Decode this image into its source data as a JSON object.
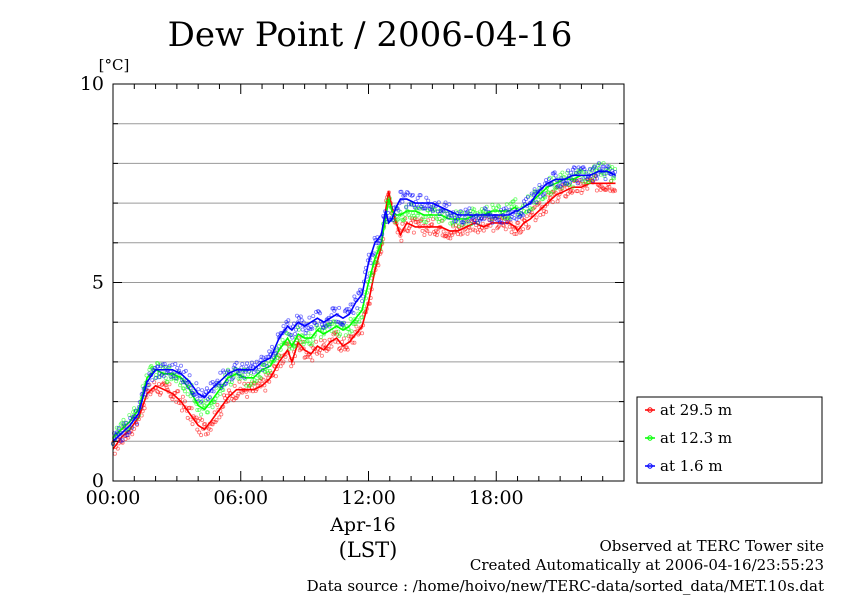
{
  "chart_data": {
    "type": "line",
    "title": "Dew Point / 2006-04-16",
    "ylabel": "[°C]",
    "xlabel_date": "Apr-16",
    "xlabel_tz": "(LST)",
    "ylim": [
      0,
      10
    ],
    "xlim": [
      0,
      24
    ],
    "y_ticks": [
      0,
      5,
      10
    ],
    "y_tick_labels": [
      "0",
      "5",
      "10"
    ],
    "y_minor_ticks": [
      1,
      2,
      3,
      4,
      6,
      7,
      8,
      9
    ],
    "x_ticks": [
      0,
      6,
      12,
      18
    ],
    "x_tick_labels": [
      "00:00",
      "06:00",
      "12:00",
      "18:00"
    ],
    "grid": "horizontal",
    "legend_position": "bottom-right, outside plot",
    "series": [
      {
        "name": "at 29.5 m",
        "color": "#ff0000",
        "points": [
          [
            0,
            0.8
          ],
          [
            0.4,
            1.1
          ],
          [
            0.8,
            1.3
          ],
          [
            1.2,
            1.6
          ],
          [
            1.6,
            2.2
          ],
          [
            2.0,
            2.4
          ],
          [
            2.4,
            2.3
          ],
          [
            2.8,
            2.2
          ],
          [
            3.2,
            2.0
          ],
          [
            3.6,
            1.7
          ],
          [
            4.0,
            1.4
          ],
          [
            4.3,
            1.3
          ],
          [
            4.6,
            1.5
          ],
          [
            5.0,
            1.8
          ],
          [
            5.4,
            2.1
          ],
          [
            5.8,
            2.3
          ],
          [
            6.2,
            2.3
          ],
          [
            6.6,
            2.3
          ],
          [
            7.0,
            2.4
          ],
          [
            7.4,
            2.6
          ],
          [
            7.8,
            3.0
          ],
          [
            8.2,
            3.3
          ],
          [
            8.4,
            3.0
          ],
          [
            8.7,
            3.5
          ],
          [
            9.0,
            3.3
          ],
          [
            9.3,
            3.2
          ],
          [
            9.6,
            3.4
          ],
          [
            9.9,
            3.3
          ],
          [
            10.2,
            3.5
          ],
          [
            10.5,
            3.6
          ],
          [
            10.8,
            3.4
          ],
          [
            11.1,
            3.5
          ],
          [
            11.4,
            3.7
          ],
          [
            11.7,
            3.9
          ],
          [
            12.0,
            4.5
          ],
          [
            12.3,
            5.3
          ],
          [
            12.6,
            5.9
          ],
          [
            12.8,
            6.8
          ],
          [
            12.95,
            7.3
          ],
          [
            13.1,
            6.9
          ],
          [
            13.3,
            6.5
          ],
          [
            13.5,
            6.2
          ],
          [
            13.8,
            6.5
          ],
          [
            14.2,
            6.4
          ],
          [
            14.6,
            6.4
          ],
          [
            15.0,
            6.4
          ],
          [
            15.4,
            6.4
          ],
          [
            15.8,
            6.3
          ],
          [
            16.2,
            6.3
          ],
          [
            16.6,
            6.4
          ],
          [
            17.0,
            6.5
          ],
          [
            17.4,
            6.4
          ],
          [
            17.8,
            6.5
          ],
          [
            18.2,
            6.5
          ],
          [
            18.6,
            6.5
          ],
          [
            18.9,
            6.4
          ],
          [
            19.0,
            6.3
          ],
          [
            19.3,
            6.5
          ],
          [
            19.6,
            6.6
          ],
          [
            20.0,
            6.8
          ],
          [
            20.4,
            7.0
          ],
          [
            20.8,
            7.2
          ],
          [
            21.2,
            7.3
          ],
          [
            21.6,
            7.4
          ],
          [
            22.0,
            7.4
          ],
          [
            22.4,
            7.5
          ],
          [
            22.8,
            7.5
          ],
          [
            23.2,
            7.5
          ],
          [
            23.6,
            7.5
          ]
        ]
      },
      {
        "name": "at 12.3 m",
        "color": "#00ff00",
        "points": [
          [
            0,
            1.1
          ],
          [
            0.4,
            1.3
          ],
          [
            0.8,
            1.5
          ],
          [
            1.2,
            1.8
          ],
          [
            1.6,
            2.6
          ],
          [
            2.0,
            2.8
          ],
          [
            2.4,
            2.7
          ],
          [
            2.8,
            2.7
          ],
          [
            3.2,
            2.6
          ],
          [
            3.6,
            2.3
          ],
          [
            4.0,
            1.9
          ],
          [
            4.3,
            1.8
          ],
          [
            4.6,
            2.0
          ],
          [
            5.0,
            2.3
          ],
          [
            5.4,
            2.6
          ],
          [
            5.8,
            2.7
          ],
          [
            6.2,
            2.6
          ],
          [
            6.6,
            2.6
          ],
          [
            7.0,
            2.8
          ],
          [
            7.4,
            2.9
          ],
          [
            7.8,
            3.3
          ],
          [
            8.2,
            3.6
          ],
          [
            8.4,
            3.4
          ],
          [
            8.7,
            3.7
          ],
          [
            9.0,
            3.6
          ],
          [
            9.3,
            3.6
          ],
          [
            9.6,
            3.8
          ],
          [
            9.9,
            3.7
          ],
          [
            10.2,
            3.8
          ],
          [
            10.5,
            3.9
          ],
          [
            10.8,
            3.8
          ],
          [
            11.1,
            3.9
          ],
          [
            11.4,
            4.1
          ],
          [
            11.7,
            4.3
          ],
          [
            12.0,
            5.0
          ],
          [
            12.3,
            5.6
          ],
          [
            12.6,
            6.0
          ],
          [
            12.8,
            6.6
          ],
          [
            12.95,
            7.1
          ],
          [
            13.1,
            6.8
          ],
          [
            13.3,
            6.7
          ],
          [
            13.5,
            6.7
          ],
          [
            13.8,
            6.8
          ],
          [
            14.2,
            6.8
          ],
          [
            14.6,
            6.7
          ],
          [
            15.0,
            6.7
          ],
          [
            15.4,
            6.7
          ],
          [
            15.8,
            6.6
          ],
          [
            16.2,
            6.6
          ],
          [
            16.6,
            6.6
          ],
          [
            17.0,
            6.7
          ],
          [
            17.4,
            6.7
          ],
          [
            17.8,
            6.8
          ],
          [
            18.2,
            6.8
          ],
          [
            18.6,
            6.8
          ],
          [
            18.9,
            6.9
          ],
          [
            19.0,
            6.8
          ],
          [
            19.3,
            6.9
          ],
          [
            19.6,
            7.0
          ],
          [
            20.0,
            7.2
          ],
          [
            20.4,
            7.4
          ],
          [
            20.8,
            7.5
          ],
          [
            21.2,
            7.6
          ],
          [
            21.6,
            7.6
          ],
          [
            22.0,
            7.7
          ],
          [
            22.4,
            7.7
          ],
          [
            22.8,
            7.8
          ],
          [
            23.2,
            7.8
          ],
          [
            23.6,
            7.7
          ]
        ]
      },
      {
        "name": "at 1.6 m",
        "color": "#0000ff",
        "points": [
          [
            0,
            1.0
          ],
          [
            0.4,
            1.2
          ],
          [
            0.8,
            1.4
          ],
          [
            1.2,
            1.7
          ],
          [
            1.6,
            2.5
          ],
          [
            2.0,
            2.8
          ],
          [
            2.4,
            2.8
          ],
          [
            2.8,
            2.8
          ],
          [
            3.2,
            2.7
          ],
          [
            3.6,
            2.5
          ],
          [
            4.0,
            2.2
          ],
          [
            4.3,
            2.1
          ],
          [
            4.6,
            2.3
          ],
          [
            5.0,
            2.5
          ],
          [
            5.4,
            2.7
          ],
          [
            5.8,
            2.8
          ],
          [
            6.2,
            2.8
          ],
          [
            6.6,
            2.8
          ],
          [
            7.0,
            3.0
          ],
          [
            7.4,
            3.1
          ],
          [
            7.8,
            3.6
          ],
          [
            8.2,
            3.9
          ],
          [
            8.4,
            3.8
          ],
          [
            8.7,
            4.0
          ],
          [
            9.0,
            3.9
          ],
          [
            9.3,
            4.0
          ],
          [
            9.6,
            4.1
          ],
          [
            9.9,
            4.0
          ],
          [
            10.2,
            4.1
          ],
          [
            10.5,
            4.2
          ],
          [
            10.8,
            4.1
          ],
          [
            11.1,
            4.2
          ],
          [
            11.4,
            4.5
          ],
          [
            11.7,
            4.7
          ],
          [
            12.0,
            5.5
          ],
          [
            12.3,
            6.0
          ],
          [
            12.6,
            6.2
          ],
          [
            12.8,
            6.8
          ],
          [
            12.95,
            6.5
          ],
          [
            13.1,
            6.6
          ],
          [
            13.3,
            6.9
          ],
          [
            13.5,
            7.1
          ],
          [
            13.8,
            7.1
          ],
          [
            14.2,
            7.0
          ],
          [
            14.6,
            7.0
          ],
          [
            15.0,
            7.0
          ],
          [
            15.4,
            6.9
          ],
          [
            15.8,
            6.8
          ],
          [
            16.2,
            6.7
          ],
          [
            16.6,
            6.7
          ],
          [
            17.0,
            6.7
          ],
          [
            17.4,
            6.7
          ],
          [
            17.8,
            6.7
          ],
          [
            18.2,
            6.7
          ],
          [
            18.6,
            6.7
          ],
          [
            18.9,
            6.8
          ],
          [
            19.0,
            6.8
          ],
          [
            19.3,
            6.9
          ],
          [
            19.6,
            7.0
          ],
          [
            20.0,
            7.3
          ],
          [
            20.4,
            7.5
          ],
          [
            20.8,
            7.6
          ],
          [
            21.2,
            7.6
          ],
          [
            21.6,
            7.7
          ],
          [
            22.0,
            7.7
          ],
          [
            22.4,
            7.7
          ],
          [
            22.8,
            7.8
          ],
          [
            23.2,
            7.8
          ],
          [
            23.6,
            7.7
          ]
        ]
      }
    ]
  },
  "footer": {
    "line1": "Observed at TERC Tower site",
    "line2": "Created Automatically at 2006-04-16/23:55:23",
    "line3": "Data source : /home/hoivo/new/TERC-data/sorted_data/MET.10s.dat"
  }
}
